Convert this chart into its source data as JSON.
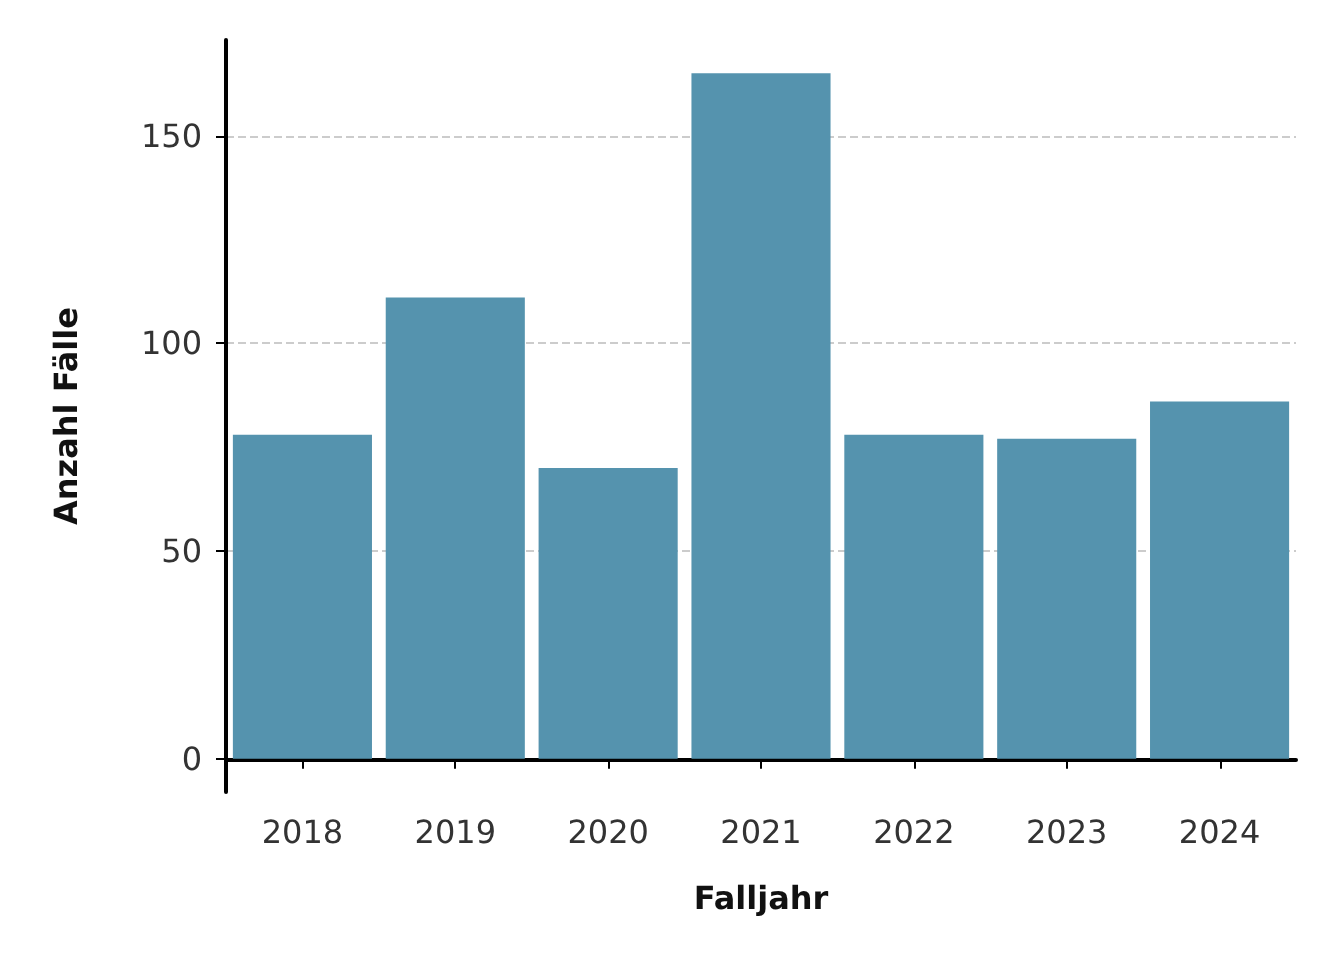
{
  "chart_data": {
    "type": "bar",
    "xlabel": "Falljahr",
    "ylabel": "Anzahl Fälle",
    "categories": [
      "2018",
      "2019",
      "2020",
      "2021",
      "2022",
      "2023",
      "2024"
    ],
    "values": [
      78,
      111,
      70,
      165,
      78,
      77,
      86
    ],
    "color": "#5593ae",
    "ylim": [
      -8,
      173
    ],
    "yticks": [
      0,
      50,
      100,
      150
    ],
    "grid": "y"
  }
}
